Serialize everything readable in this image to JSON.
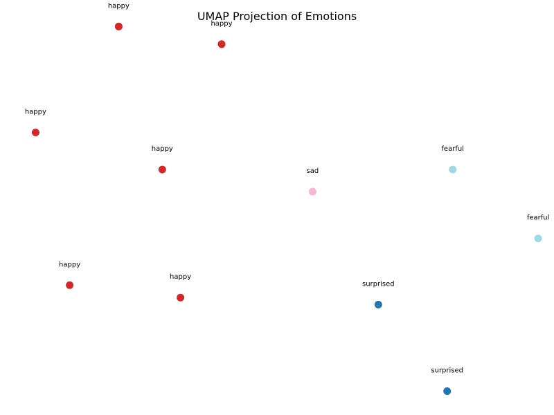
{
  "chart_data": {
    "type": "scatter",
    "title": "UMAP Projection of Emotions",
    "xlabel": "",
    "ylabel": "",
    "axes_visible": false,
    "grid": false,
    "colors": {
      "happy": "#d62728",
      "sad": "#f4b6d2",
      "fearful": "#9edae5",
      "surprised": "#1f77b4"
    },
    "points": [
      {
        "label": "happy",
        "x": 1.5,
        "y": 8.9
      },
      {
        "label": "happy",
        "x": 2.8,
        "y": 8.7
      },
      {
        "label": "happy",
        "x": 0.45,
        "y": 7.7
      },
      {
        "label": "happy",
        "x": 2.05,
        "y": 7.28
      },
      {
        "label": "sad",
        "x": 3.95,
        "y": 7.03
      },
      {
        "label": "fearful",
        "x": 5.72,
        "y": 7.28
      },
      {
        "label": "fearful",
        "x": 6.8,
        "y": 6.5
      },
      {
        "label": "happy",
        "x": 0.88,
        "y": 5.97
      },
      {
        "label": "happy",
        "x": 2.28,
        "y": 5.83
      },
      {
        "label": "surprised",
        "x": 4.78,
        "y": 5.75
      },
      {
        "label": "surprised",
        "x": 5.65,
        "y": 4.77
      }
    ],
    "xlim": [
      0.0,
      7.0
    ],
    "ylim": [
      4.5,
      9.2
    ]
  }
}
